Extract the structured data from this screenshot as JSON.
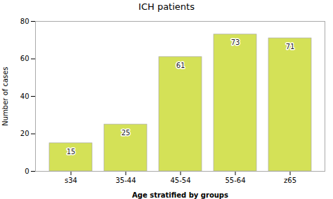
{
  "chart_data": {
    "type": "bar",
    "title": "ICH patients",
    "categories": [
      "s34",
      "35-44",
      "45-54",
      "55-64",
      "z65"
    ],
    "values": [
      15,
      25,
      61,
      73,
      71
    ],
    "color": "#d4e157",
    "xlabel": "Age stratified by groups",
    "ylabel": "Number of cases",
    "ylim": [
      0,
      80
    ],
    "yticks": [
      0,
      20,
      40,
      60,
      80
    ],
    "grid": false,
    "data_labels": true
  }
}
